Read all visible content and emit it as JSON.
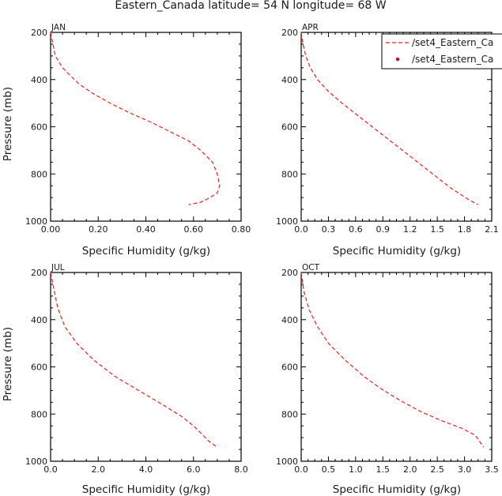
{
  "figure": {
    "title": "Eastern_Canada  latitude= 54 N longitude= 68 W",
    "xlabel": "Specific Humidity (g/kg)",
    "ylabel": "Pressure (mb)",
    "legend": {
      "placement": "top-right",
      "entries": [
        {
          "label": "/set4_Eastern_Ca",
          "style": "dashed-line",
          "color": "#e8211f"
        },
        {
          "label": "/set4_Eastern_Ca",
          "style": "dot",
          "color": "#c8102e"
        }
      ]
    }
  },
  "chart_data": [
    {
      "type": "line",
      "panel_label": "JAN",
      "xlim": [
        0.0,
        0.8
      ],
      "ylim": [
        1000,
        200
      ],
      "xticks": [
        "0.00",
        "0.20",
        "0.40",
        "0.60",
        "0.80"
      ],
      "yticks": [
        "200",
        "400",
        "600",
        "800",
        "1000"
      ],
      "series": [
        {
          "name": "/set4_Eastern_Ca",
          "color": "#e8211f",
          "x": [
            0.0,
            0.01,
            0.02,
            0.05,
            0.08,
            0.12,
            0.18,
            0.25,
            0.33,
            0.42,
            0.5,
            0.58,
            0.63,
            0.68,
            0.7,
            0.71,
            0.7,
            0.67,
            0.63,
            0.58
          ],
          "y": [
            200,
            250,
            300,
            350,
            380,
            420,
            460,
            500,
            540,
            580,
            620,
            660,
            700,
            750,
            800,
            850,
            880,
            900,
            920,
            930
          ]
        }
      ]
    },
    {
      "type": "line",
      "panel_label": "APR",
      "xlim": [
        0.0,
        2.1
      ],
      "ylim": [
        1000,
        200
      ],
      "xticks": [
        "0.0",
        "0.3",
        "0.6",
        "0.9",
        "1.2",
        "1.5",
        "1.8",
        "2.1"
      ],
      "yticks": [
        "200",
        "400",
        "600",
        "800",
        "1000"
      ],
      "series": [
        {
          "name": "/set4_Eastern_Ca",
          "color": "#e8211f",
          "x": [
            0.0,
            0.02,
            0.05,
            0.1,
            0.18,
            0.3,
            0.45,
            0.65,
            0.85,
            1.05,
            1.25,
            1.45,
            1.65,
            1.85,
            1.95
          ],
          "y": [
            200,
            250,
            300,
            350,
            400,
            450,
            500,
            560,
            620,
            680,
            740,
            800,
            860,
            910,
            930
          ]
        }
      ]
    },
    {
      "type": "line",
      "panel_label": "JUL",
      "xlim": [
        0.0,
        8.0
      ],
      "ylim": [
        1000,
        200
      ],
      "xticks": [
        "0.0",
        "2.0",
        "4.0",
        "6.0",
        "8.0"
      ],
      "yticks": [
        "200",
        "400",
        "600",
        "800",
        "1000"
      ],
      "series": [
        {
          "name": "/set4_Eastern_Ca",
          "color": "#e8211f",
          "x": [
            0.0,
            0.1,
            0.3,
            0.6,
            1.1,
            1.8,
            2.7,
            3.7,
            4.7,
            5.5,
            6.0,
            6.4,
            6.7,
            7.0
          ],
          "y": [
            200,
            250,
            350,
            430,
            500,
            570,
            640,
            700,
            760,
            810,
            850,
            890,
            920,
            940
          ]
        }
      ]
    },
    {
      "type": "line",
      "panel_label": "OCT",
      "xlim": [
        0.0,
        3.5
      ],
      "ylim": [
        1000,
        200
      ],
      "xticks": [
        "0.0",
        "0.5",
        "1.0",
        "1.5",
        "2.0",
        "2.5",
        "3.0",
        "3.5"
      ],
      "yticks": [
        "200",
        "400",
        "600",
        "800",
        "1000"
      ],
      "series": [
        {
          "name": "/set4_Eastern_Ca",
          "color": "#e8211f",
          "x": [
            0.0,
            0.05,
            0.15,
            0.3,
            0.5,
            0.8,
            1.15,
            1.45,
            1.8,
            2.2,
            2.6,
            2.95,
            3.2,
            3.35
          ],
          "y": [
            200,
            280,
            360,
            430,
            500,
            570,
            640,
            690,
            740,
            790,
            830,
            860,
            890,
            940
          ]
        }
      ]
    }
  ]
}
